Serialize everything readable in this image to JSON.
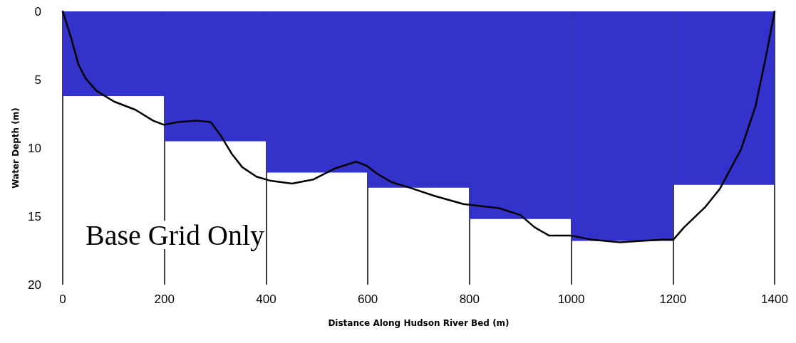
{
  "chart_data": {
    "type": "bar",
    "xlabel": "Distance Along Hudson River Bed (m)",
    "ylabel": "Water Depth (m)",
    "series": [
      {
        "color": "#3333cc",
        "x": [
          100,
          300,
          500,
          700,
          900,
          1100,
          1300
        ],
        "values": [
          6.2,
          9.5,
          11.8,
          12.9,
          15.2,
          16.8,
          12.7
        ]
      },
      {
        "type": "line",
        "color": "#000000",
        "x": [
          0,
          17,
          31,
          45,
          66,
          101,
          143,
          178,
          199,
          227,
          263,
          291,
          311,
          332,
          353,
          381,
          409,
          451,
          493,
          535,
          577,
          598,
          619,
          647,
          682,
          731,
          788,
          858,
          900,
          928,
          956,
          998,
          1040,
          1096,
          1138,
          1180,
          1201,
          1222,
          1264,
          1292,
          1334,
          1362,
          1383,
          1400
        ],
        "values": [
          0,
          2.0,
          3.9,
          4.9,
          5.8,
          6.6,
          7.2,
          8.0,
          8.3,
          8.1,
          8.0,
          8.1,
          9.1,
          10.4,
          11.4,
          12.1,
          12.4,
          12.6,
          12.3,
          11.5,
          11.0,
          11.3,
          11.9,
          12.5,
          12.9,
          13.5,
          14.1,
          14.4,
          14.9,
          15.8,
          16.4,
          16.4,
          16.7,
          16.9,
          16.8,
          16.7,
          16.7,
          15.8,
          14.3,
          13.0,
          10.1,
          7.0,
          3.3,
          0
        ]
      }
    ],
    "xlim": [
      0,
      1400
    ],
    "xticks": [
      0,
      200,
      400,
      600,
      800,
      1000,
      1200,
      1400
    ],
    "ylim": [
      20,
      0
    ],
    "yticks": [
      0,
      5,
      10,
      15,
      20
    ],
    "grid": "x",
    "marker": "none",
    "line_style": "solid",
    "annotations": [
      "Base Grid Only"
    ]
  }
}
